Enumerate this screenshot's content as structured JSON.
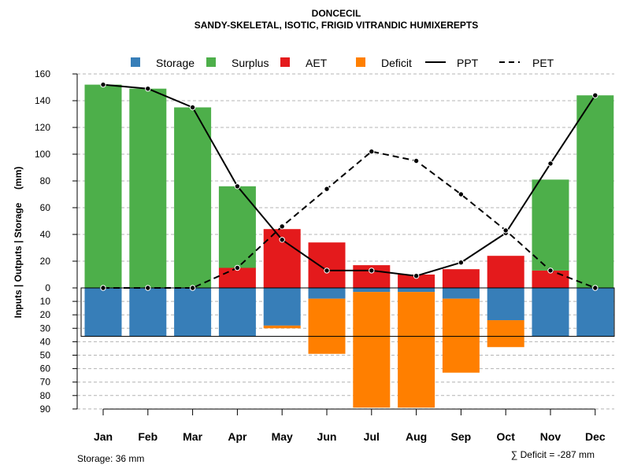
{
  "chart_data": {
    "type": "bar+line",
    "title": "DONCECIL",
    "subtitle": "SANDY-SKELETAL, ISOTIC, FRIGID VITRANDIC HUMIXEREPTS",
    "ylabel": "Inputs | Outputs | Storage     (mm)",
    "categories": [
      "Jan",
      "Feb",
      "Mar",
      "Apr",
      "May",
      "Jun",
      "Jul",
      "Aug",
      "Sep",
      "Oct",
      "Nov",
      "Dec"
    ],
    "upper_ticks": [
      0,
      20,
      40,
      60,
      80,
      100,
      120,
      140,
      160
    ],
    "lower_ticks": [
      10,
      20,
      30,
      40,
      50,
      60,
      70,
      80,
      90
    ],
    "ylim_upper": [
      0,
      160
    ],
    "ylim_lower": [
      0,
      90
    ],
    "aet": [
      0,
      0,
      0,
      15,
      44,
      34,
      17,
      10,
      14,
      24,
      13,
      0
    ],
    "surplus": [
      152,
      149,
      135,
      61,
      0,
      0,
      0,
      0,
      0,
      0,
      68,
      144
    ],
    "storage": [
      36,
      36,
      36,
      36,
      28,
      8,
      3,
      3,
      8,
      24,
      36,
      36
    ],
    "deficit": [
      0,
      0,
      0,
      0,
      2,
      41,
      86,
      86,
      55,
      20,
      0,
      0
    ],
    "ppt": [
      152,
      149,
      135,
      76,
      36,
      13,
      13,
      9,
      19,
      41,
      93,
      144
    ],
    "pet": [
      0,
      0,
      0,
      15,
      46,
      74,
      102,
      95,
      70,
      43,
      13,
      0
    ],
    "legend": {
      "storage": "Storage",
      "surplus": "Surplus",
      "aet": "AET",
      "deficit": "Deficit",
      "ppt": "PPT",
      "pet": "PET"
    },
    "colors": {
      "storage": "#377EB8",
      "surplus": "#4DAF4A",
      "aet": "#E41A1C",
      "deficit": "#FF7F00"
    },
    "legend_position": "top"
  },
  "footer": {
    "storage_note": "Storage: 36 mm",
    "deficit_note": "∑ Deficit = -287 mm"
  }
}
